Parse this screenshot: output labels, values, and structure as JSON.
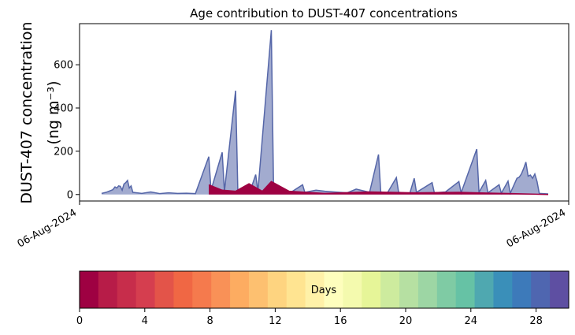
{
  "chart_data": {
    "type": "area",
    "title": "Age contribution to DUST-407 concentrations",
    "ylabel_line1": "DUST-407 concentration",
    "ylabel_line2": "(ng m⁻³)",
    "x_tick_labels": [
      "06-Aug-2024",
      "06-Aug-2024"
    ],
    "y_ticks": [
      0,
      200,
      400,
      600
    ],
    "ylim": [
      -30,
      790
    ],
    "colorbar": {
      "label": "Days",
      "range": [
        0,
        30
      ],
      "ticks": [
        0,
        4,
        8,
        12,
        16,
        20,
        24,
        28
      ],
      "colors": [
        "#9e0142",
        "#b71c48",
        "#c72d4b",
        "#d53e4f",
        "#e35449",
        "#f06744",
        "#f57a4d",
        "#f99157",
        "#fdac61",
        "#fdc070",
        "#fed480",
        "#ffe491",
        "#fff1a8",
        "#fefebd",
        "#f4faae",
        "#e6f598",
        "#cdeb9e",
        "#b6e0a2",
        "#9dd6a4",
        "#7fcba4",
        "#66c2a5",
        "#4fa8b0",
        "#3a8fb9",
        "#3d7aba",
        "#4f66b0",
        "#5e4fa2"
      ]
    },
    "series": [
      {
        "color": "#5566a8",
        "values": [
          [
            0,
            5
          ],
          [
            0.01,
            10
          ],
          [
            0.015,
            14
          ],
          [
            0.02,
            18
          ],
          [
            0.025,
            22
          ],
          [
            0.03,
            35
          ],
          [
            0.034,
            30
          ],
          [
            0.038,
            40
          ],
          [
            0.042,
            38
          ],
          [
            0.046,
            20
          ],
          [
            0.05,
            48
          ],
          [
            0.054,
            55
          ],
          [
            0.058,
            65
          ],
          [
            0.062,
            30
          ],
          [
            0.066,
            40
          ],
          [
            0.07,
            10
          ],
          [
            0.09,
            5
          ],
          [
            0.11,
            12
          ],
          [
            0.13,
            4
          ],
          [
            0.15,
            8
          ],
          [
            0.17,
            5
          ],
          [
            0.19,
            6
          ],
          [
            0.21,
            4
          ],
          [
            0.24,
            175
          ],
          [
            0.245,
            20
          ],
          [
            0.27,
            195
          ],
          [
            0.275,
            15
          ],
          [
            0.3,
            480
          ],
          [
            0.305,
            15
          ],
          [
            0.335,
            30
          ],
          [
            0.345,
            92
          ],
          [
            0.35,
            15
          ],
          [
            0.38,
            760
          ],
          [
            0.385,
            30
          ],
          [
            0.42,
            5
          ],
          [
            0.45,
            45
          ],
          [
            0.455,
            10
          ],
          [
            0.48,
            20
          ],
          [
            0.5,
            15
          ],
          [
            0.52,
            12
          ],
          [
            0.55,
            8
          ],
          [
            0.57,
            25
          ],
          [
            0.59,
            15
          ],
          [
            0.6,
            10
          ],
          [
            0.62,
            185
          ],
          [
            0.625,
            12
          ],
          [
            0.64,
            8
          ],
          [
            0.66,
            78
          ],
          [
            0.665,
            10
          ],
          [
            0.69,
            5
          ],
          [
            0.7,
            75
          ],
          [
            0.705,
            10
          ],
          [
            0.74,
            55
          ],
          [
            0.745,
            8
          ],
          [
            0.77,
            12
          ],
          [
            0.8,
            60
          ],
          [
            0.805,
            8
          ],
          [
            0.84,
            210
          ],
          [
            0.845,
            10
          ],
          [
            0.86,
            65
          ],
          [
            0.865,
            8
          ],
          [
            0.89,
            45
          ],
          [
            0.895,
            6
          ],
          [
            0.91,
            62
          ],
          [
            0.915,
            6
          ],
          [
            0.93,
            75
          ],
          [
            0.935,
            80
          ],
          [
            0.94,
            95
          ],
          [
            0.945,
            120
          ],
          [
            0.95,
            150
          ],
          [
            0.955,
            85
          ],
          [
            0.96,
            90
          ],
          [
            0.965,
            75
          ],
          [
            0.97,
            95
          ],
          [
            0.975,
            60
          ],
          [
            0.98,
            5
          ],
          [
            1.0,
            3
          ]
        ]
      },
      {
        "color": "#9e0142",
        "values": [
          [
            0.24,
            45
          ],
          [
            0.27,
            20
          ],
          [
            0.3,
            15
          ],
          [
            0.33,
            50
          ],
          [
            0.36,
            15
          ],
          [
            0.38,
            60
          ],
          [
            0.42,
            15
          ],
          [
            0.5,
            5
          ],
          [
            0.6,
            12
          ],
          [
            0.7,
            8
          ],
          [
            0.8,
            10
          ],
          [
            0.9,
            5
          ],
          [
            1.0,
            0
          ]
        ]
      }
    ]
  }
}
